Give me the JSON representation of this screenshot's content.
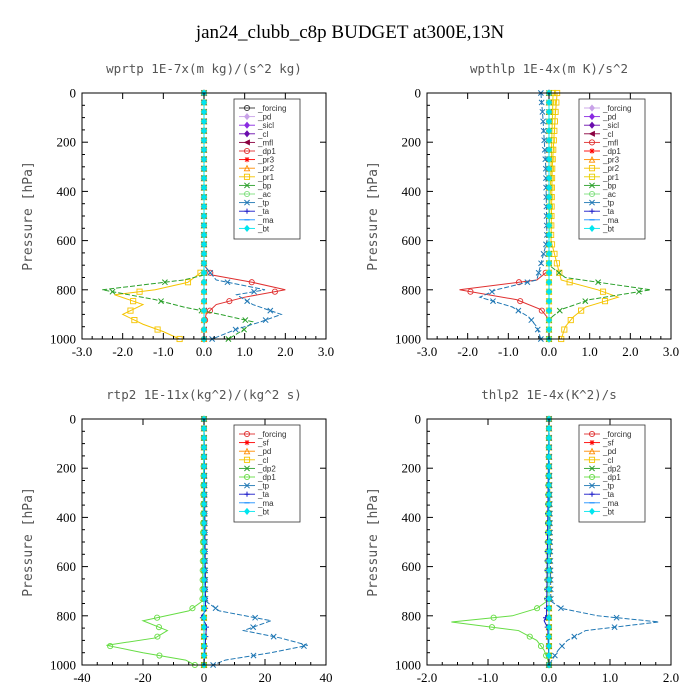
{
  "figure_title": "jan24_clubb_c8p  BUDGET at300E,13N",
  "chart_data": [
    {
      "type": "line",
      "title": "wprtp  1E-7x(m kg)/(s^2 kg)",
      "ylabel": "Pressure [hPa]",
      "xlim": [
        -3.0,
        3.0
      ],
      "ylim": [
        1000,
        0
      ],
      "xticks": [
        "-3.0",
        "-2.0",
        "-1.0",
        "0.0",
        "1.0",
        "2.0",
        "3.0"
      ],
      "yticks": [
        "0",
        "200",
        "400",
        "600",
        "800",
        "1000"
      ],
      "legend_position": "top-right",
      "series": [
        {
          "name": "_forcing",
          "color": "#333333",
          "marker": "o",
          "y": [
            0,
            200,
            400,
            600,
            800,
            1000
          ],
          "x": [
            0,
            0,
            0,
            0,
            0,
            0
          ]
        },
        {
          "name": "_pd",
          "color": "#c8a2e8",
          "marker": "d",
          "y": [
            0,
            600,
            800,
            1000
          ],
          "x": [
            0,
            0,
            0,
            0
          ]
        },
        {
          "name": "_sicl",
          "color": "#8a2be2",
          "marker": "d",
          "y": [
            0,
            600,
            800,
            1000
          ],
          "x": [
            0,
            0,
            0,
            0
          ]
        },
        {
          "name": "_cl",
          "color": "#6a0dad",
          "marker": "d",
          "y": [
            0,
            600,
            800,
            1000
          ],
          "x": [
            0,
            0,
            0,
            0
          ]
        },
        {
          "name": "_mfl",
          "color": "#8b0040",
          "marker": "<",
          "y": [
            0,
            600,
            800,
            1000
          ],
          "x": [
            0,
            0,
            0,
            0
          ]
        },
        {
          "name": "_dp1",
          "color": "#e03030",
          "marker": "o",
          "y": [
            0,
            700,
            740,
            770,
            800,
            830,
            860,
            900,
            950,
            1000
          ],
          "x": [
            0,
            0,
            0.2,
            1.2,
            2.0,
            1.0,
            0.3,
            0.05,
            0,
            0
          ]
        },
        {
          "name": "_pr3",
          "color": "#ff0000",
          "marker": "*",
          "y": [
            0,
            600,
            800,
            1000
          ],
          "x": [
            0,
            0,
            0,
            0
          ]
        },
        {
          "name": "_pr2",
          "color": "#ff8c00",
          "marker": "^",
          "y": [
            0,
            600,
            800,
            1000
          ],
          "x": [
            0,
            0,
            0,
            0
          ]
        },
        {
          "name": "_pr1",
          "color": "#f5c400",
          "marker": "s",
          "y": [
            0,
            720,
            770,
            800,
            820,
            860,
            900,
            940,
            970,
            1000
          ],
          "x": [
            0,
            0,
            -0.4,
            -1.2,
            -2.2,
            -1.5,
            -2.0,
            -1.5,
            -1.0,
            -0.6
          ]
        },
        {
          "name": "_bp",
          "color": "#2aa02a",
          "marker": "x",
          "y": [
            0,
            740,
            760,
            800,
            840,
            870,
            900,
            930,
            960,
            1000
          ],
          "x": [
            0,
            0,
            -0.5,
            -2.5,
            -1.2,
            -0.5,
            0.4,
            1.2,
            1.0,
            0.6
          ]
        },
        {
          "name": "_ac",
          "color": "#7ee07e",
          "marker": "o",
          "y": [
            0,
            600,
            800,
            1000
          ],
          "x": [
            0,
            0,
            0,
            0
          ]
        },
        {
          "name": "_tp",
          "color": "#1f77b4",
          "marker": "x",
          "y": [
            0,
            700,
            760,
            800,
            820,
            860,
            900,
            930,
            960,
            1000
          ],
          "x": [
            0,
            0,
            0.3,
            1.5,
            0.8,
            1.2,
            1.9,
            1.4,
            0.8,
            0.2
          ]
        },
        {
          "name": "_ta",
          "color": "#1a1ac8",
          "marker": "+",
          "y": [
            0,
            600,
            800,
            1000
          ],
          "x": [
            0,
            0,
            0,
            0
          ]
        },
        {
          "name": "_ma",
          "color": "#1e90ff",
          "marker": "-",
          "y": [
            0,
            600,
            800,
            1000
          ],
          "x": [
            0,
            0,
            0,
            0
          ]
        },
        {
          "name": "_bt",
          "color": "#00e5ee",
          "marker": "d",
          "y": [
            0,
            600,
            800,
            1000
          ],
          "x": [
            0,
            0,
            0,
            0
          ]
        }
      ]
    },
    {
      "type": "line",
      "title": "wpthlp  1E-4x(m K)/s^2",
      "ylabel": "Pressure [hPa]",
      "xlim": [
        -3.0,
        3.0
      ],
      "ylim": [
        1000,
        0
      ],
      "xticks": [
        "-3.0",
        "-2.0",
        "-1.0",
        "0.0",
        "1.0",
        "2.0",
        "3.0"
      ],
      "yticks": [
        "0",
        "200",
        "400",
        "600",
        "800",
        "1000"
      ],
      "legend_position": "top-right",
      "series": [
        {
          "name": "_forcing",
          "color": "#c8a2e8",
          "marker": "d",
          "y": [
            0,
            200,
            400,
            600,
            800,
            1000
          ],
          "x": [
            0,
            0,
            0,
            0,
            0,
            0
          ]
        },
        {
          "name": "_pd",
          "color": "#8a2be2",
          "marker": "d",
          "y": [
            0,
            600,
            800,
            1000
          ],
          "x": [
            0,
            0,
            0,
            0
          ]
        },
        {
          "name": "_sicl",
          "color": "#6a0dad",
          "marker": "d",
          "y": [
            0,
            600,
            800,
            1000
          ],
          "x": [
            0,
            0,
            0,
            0
          ]
        },
        {
          "name": "_cl",
          "color": "#8b0040",
          "marker": "<",
          "y": [
            0,
            600,
            800,
            1000
          ],
          "x": [
            0,
            0,
            0,
            0
          ]
        },
        {
          "name": "_mfl",
          "color": "#e03030",
          "marker": "o",
          "y": [
            0,
            720,
            760,
            800,
            840,
            880,
            920,
            960,
            1000
          ],
          "x": [
            0,
            0,
            -0.3,
            -2.2,
            -0.8,
            -0.2,
            0,
            0,
            0
          ]
        },
        {
          "name": "_dp1",
          "color": "#ff0000",
          "marker": "*",
          "y": [
            0,
            600,
            800,
            1000
          ],
          "x": [
            0,
            0,
            0,
            0
          ]
        },
        {
          "name": "_pr3",
          "color": "#ff8c00",
          "marker": "^",
          "y": [
            0,
            600,
            800,
            1000
          ],
          "x": [
            0,
            0,
            0,
            0
          ]
        },
        {
          "name": "_pr2",
          "color": "#f5c400",
          "marker": "s",
          "y": [
            0,
            100,
            300,
            600,
            760,
            800,
            830,
            870,
            910,
            950,
            1000
          ],
          "x": [
            0.2,
            0.15,
            0.08,
            0.05,
            0.3,
            1.2,
            1.7,
            0.9,
            0.6,
            0.4,
            0.3
          ]
        },
        {
          "name": "_pr1",
          "color": "#e8d000",
          "marker": "s",
          "y": [
            0,
            600,
            800,
            1000
          ],
          "x": [
            0.1,
            0,
            0,
            0
          ]
        },
        {
          "name": "_bp",
          "color": "#2aa02a",
          "marker": "x",
          "y": [
            0,
            700,
            750,
            800,
            840,
            880,
            920,
            1000
          ],
          "x": [
            0,
            0,
            0.4,
            2.5,
            1.0,
            0.3,
            0,
            0
          ]
        },
        {
          "name": "_ac",
          "color": "#7ee07e",
          "marker": "o",
          "y": [
            0,
            600,
            800,
            1000
          ],
          "x": [
            0,
            0,
            0,
            0
          ]
        },
        {
          "name": "_tp",
          "color": "#1f77b4",
          "marker": "x",
          "y": [
            0,
            100,
            300,
            600,
            760,
            800,
            830,
            870,
            910,
            950,
            1000
          ],
          "x": [
            -0.2,
            -0.15,
            -0.08,
            -0.05,
            -0.3,
            -1.3,
            -1.7,
            -0.9,
            -0.5,
            -0.3,
            -0.2
          ]
        },
        {
          "name": "_ta",
          "color": "#1a1ac8",
          "marker": "+",
          "y": [
            0,
            600,
            800,
            1000
          ],
          "x": [
            0,
            0,
            0,
            0
          ]
        },
        {
          "name": "_ma",
          "color": "#1e90ff",
          "marker": "-",
          "y": [
            0,
            600,
            800,
            1000
          ],
          "x": [
            0,
            0,
            0,
            0
          ]
        },
        {
          "name": "_bt",
          "color": "#00e5ee",
          "marker": "d",
          "y": [
            0,
            600,
            800,
            1000
          ],
          "x": [
            0,
            0,
            0,
            0
          ]
        }
      ]
    },
    {
      "type": "line",
      "title": "rtp2  1E-11x(kg^2)/(kg^2 s)",
      "ylabel": "Pressure [hPa]",
      "xlim": [
        -40,
        40
      ],
      "ylim": [
        1000,
        0
      ],
      "xticks": [
        "-40",
        "-20",
        "0",
        "20",
        "40"
      ],
      "yticks": [
        "0",
        "200",
        "400",
        "600",
        "800",
        "1000"
      ],
      "legend_position": "top-right",
      "series": [
        {
          "name": "_forcing",
          "color": "#e03030",
          "marker": "o",
          "y": [
            0,
            200,
            400,
            600,
            800,
            1000
          ],
          "x": [
            0,
            0,
            0,
            0,
            0,
            0
          ]
        },
        {
          "name": "_sf",
          "color": "#ff0000",
          "marker": "*",
          "y": [
            0,
            600,
            800,
            1000
          ],
          "x": [
            0,
            0,
            0,
            0
          ]
        },
        {
          "name": "_pd",
          "color": "#ff8c00",
          "marker": "^",
          "y": [
            0,
            600,
            800,
            1000
          ],
          "x": [
            0,
            0,
            0,
            0
          ]
        },
        {
          "name": "_cl",
          "color": "#f5c400",
          "marker": "s",
          "y": [
            0,
            600,
            800,
            1000
          ],
          "x": [
            0,
            0,
            0,
            0
          ]
        },
        {
          "name": "_dp2",
          "color": "#2aa02a",
          "marker": "x",
          "y": [
            0,
            600,
            800,
            1000
          ],
          "x": [
            0,
            0,
            0,
            0
          ]
        },
        {
          "name": "_dp1",
          "color": "#66dd44",
          "marker": "o",
          "y": [
            0,
            740,
            780,
            820,
            860,
            890,
            920,
            950,
            980,
            1000
          ],
          "x": [
            0,
            -0.5,
            -5,
            -20,
            -12,
            -16,
            -32,
            -20,
            -6,
            -3
          ]
        },
        {
          "name": "_tp",
          "color": "#1f77b4",
          "marker": "x",
          "y": [
            0,
            740,
            780,
            820,
            860,
            890,
            920,
            950,
            980,
            1000
          ],
          "x": [
            0,
            0.5,
            5,
            22,
            13,
            25,
            34,
            22,
            7,
            3
          ]
        },
        {
          "name": "_ta",
          "color": "#1a1ac8",
          "marker": "+",
          "y": [
            0,
            780,
            800,
            840,
            1000
          ],
          "x": [
            0,
            0.5,
            -0.8,
            0.8,
            0
          ]
        },
        {
          "name": "_ma",
          "color": "#1e90ff",
          "marker": "-",
          "y": [
            0,
            600,
            800,
            1000
          ],
          "x": [
            0,
            0,
            0,
            0
          ]
        },
        {
          "name": "_bt",
          "color": "#00e5ee",
          "marker": "d",
          "y": [
            0,
            600,
            800,
            1000
          ],
          "x": [
            0,
            0,
            0,
            0
          ]
        }
      ]
    },
    {
      "type": "line",
      "title": "thlp2  1E-4x(K^2)/s",
      "ylabel": "Pressure [hPa]",
      "xlim": [
        -2.0,
        2.0
      ],
      "ylim": [
        1000,
        0
      ],
      "xticks": [
        "-2.0",
        "-1.0",
        "0.0",
        "1.0",
        "2.0"
      ],
      "yticks": [
        "0",
        "200",
        "400",
        "600",
        "800",
        "1000"
      ],
      "legend_position": "top-right",
      "series": [
        {
          "name": "_forcing",
          "color": "#e03030",
          "marker": "o",
          "y": [
            0,
            200,
            400,
            600,
            800,
            1000
          ],
          "x": [
            0,
            0,
            0,
            0,
            0,
            0
          ]
        },
        {
          "name": "_sf",
          "color": "#ff0000",
          "marker": "*",
          "y": [
            0,
            600,
            800,
            1000
          ],
          "x": [
            0,
            0,
            0,
            0
          ]
        },
        {
          "name": "_pd",
          "color": "#ff8c00",
          "marker": "^",
          "y": [
            0,
            600,
            800,
            1000
          ],
          "x": [
            0,
            0,
            0,
            0
          ]
        },
        {
          "name": "_cl",
          "color": "#f5c400",
          "marker": "s",
          "y": [
            0,
            600,
            800,
            1000
          ],
          "x": [
            0,
            0,
            0,
            0
          ]
        },
        {
          "name": "_dp2",
          "color": "#2aa02a",
          "marker": "x",
          "y": [
            0,
            600,
            800,
            1000
          ],
          "x": [
            0,
            0,
            0,
            0
          ]
        },
        {
          "name": "_dp1",
          "color": "#66dd44",
          "marker": "o",
          "y": [
            0,
            740,
            770,
            800,
            825,
            860,
            900,
            940,
            980,
            1000
          ],
          "x": [
            0,
            -0.03,
            -0.2,
            -0.6,
            -1.6,
            -0.5,
            -0.2,
            -0.08,
            -0.02,
            0
          ]
        },
        {
          "name": "_tp",
          "color": "#1f77b4",
          "marker": "x",
          "y": [
            0,
            740,
            770,
            800,
            825,
            860,
            900,
            940,
            980,
            1000
          ],
          "x": [
            0,
            0.03,
            0.2,
            0.8,
            1.8,
            0.6,
            0.3,
            0.15,
            0.05,
            0
          ]
        },
        {
          "name": "_ta",
          "color": "#1a1ac8",
          "marker": "+",
          "y": [
            0,
            800,
            820,
            850,
            1000
          ],
          "x": [
            0,
            -0.04,
            -0.08,
            -0.02,
            0
          ]
        },
        {
          "name": "_ma",
          "color": "#1e90ff",
          "marker": "-",
          "y": [
            0,
            600,
            800,
            1000
          ],
          "x": [
            0,
            0,
            0,
            0
          ]
        },
        {
          "name": "_bt",
          "color": "#00e5ee",
          "marker": "d",
          "y": [
            0,
            600,
            800,
            1000
          ],
          "x": [
            0,
            0,
            0,
            0
          ]
        }
      ]
    }
  ]
}
